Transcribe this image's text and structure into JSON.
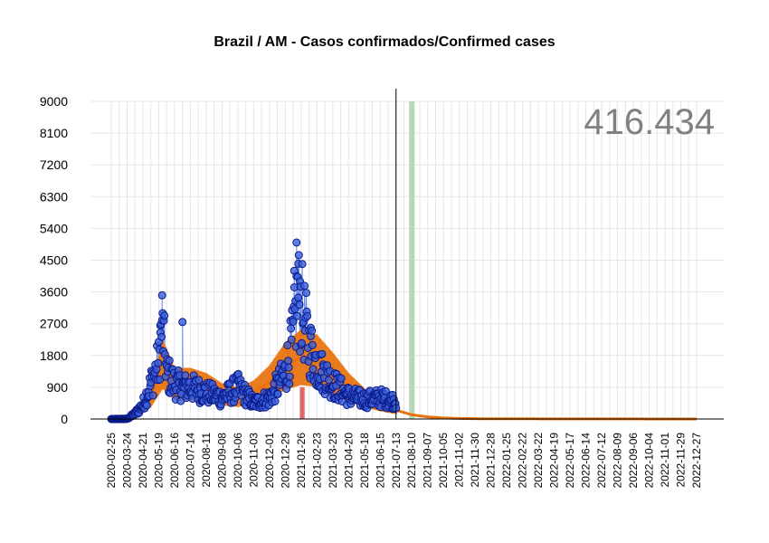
{
  "chart_data": {
    "type": "line",
    "title": "Brazil / AM - Casos confirmados/Confirmed cases",
    "total_label": "416.434",
    "y_ticks": [
      "0",
      "900",
      "1800",
      "2700",
      "3600",
      "4500",
      "5400",
      "6300",
      "7200",
      "8100",
      "9000"
    ],
    "ylim": [
      0,
      9000
    ],
    "x_tick_labels": [
      "2020-02-25",
      "2020-03-24",
      "2020-04-21",
      "2020-05-19",
      "2020-06-16",
      "2020-07-14",
      "2020-08-11",
      "2020-09-08",
      "2020-10-06",
      "2020-11-03",
      "2020-12-01",
      "2020-12-29",
      "2021-01-26",
      "2021-02-23",
      "2021-03-23",
      "2021-04-20",
      "2021-05-18",
      "2021-06-15",
      "2021-07-13",
      "2021-08-10",
      "2021-09-07",
      "2021-10-05",
      "2021-11-02",
      "2021-11-30",
      "2021-12-28",
      "2022-01-25",
      "2022-02-22",
      "2022-03-22",
      "2022-04-19",
      "2022-05-17",
      "2022-06-14",
      "2022-07-12",
      "2022-08-09",
      "2022-09-06",
      "2022-10-04",
      "2022-11-01",
      "2022-11-29",
      "2022-12-27"
    ],
    "xlim": [
      "2020-02-25",
      "2022-12-27"
    ],
    "current_date": "2021-07-13",
    "highlight_date": "2021-08-10",
    "grid": true,
    "colors": {
      "observed_points": "#3a5fd8",
      "observed_edge": "#0a1a8a",
      "observed_line": "#6f8fe8",
      "fitted": "#e8720c",
      "highlight": "#b7d7b7",
      "peak_bars": "#e06060",
      "grid": "#e6e6e6"
    },
    "observed_key_points": [
      {
        "x": "2020-02-25",
        "y": 0
      },
      {
        "x": "2020-03-24",
        "y": 5
      },
      {
        "x": "2020-04-07",
        "y": 150
      },
      {
        "x": "2020-04-21",
        "y": 400
      },
      {
        "x": "2020-05-05",
        "y": 1000
      },
      {
        "x": "2020-05-19",
        "y": 1600
      },
      {
        "x": "2020-05-25",
        "y": 2750
      },
      {
        "x": "2020-06-02",
        "y": 1300
      },
      {
        "x": "2020-06-16",
        "y": 1000
      },
      {
        "x": "2020-06-30",
        "y": 900
      },
      {
        "x": "2020-07-14",
        "y": 900
      },
      {
        "x": "2020-08-11",
        "y": 750
      },
      {
        "x": "2020-09-08",
        "y": 600
      },
      {
        "x": "2020-10-06",
        "y": 900
      },
      {
        "x": "2020-11-03",
        "y": 450
      },
      {
        "x": "2020-12-01",
        "y": 600
      },
      {
        "x": "2020-12-29",
        "y": 1300
      },
      {
        "x": "2021-01-12",
        "y": 2300
      },
      {
        "x": "2021-01-20",
        "y": 3500
      },
      {
        "x": "2021-01-26",
        "y": 3200
      },
      {
        "x": "2021-02-09",
        "y": 2100
      },
      {
        "x": "2021-02-23",
        "y": 1500
      },
      {
        "x": "2021-03-23",
        "y": 1000
      },
      {
        "x": "2021-04-20",
        "y": 650
      },
      {
        "x": "2021-05-18",
        "y": 550
      },
      {
        "x": "2021-06-15",
        "y": 600
      },
      {
        "x": "2021-07-13",
        "y": 500
      }
    ],
    "observed_extremes": [
      {
        "x": "2020-05-22",
        "y": 2650
      },
      {
        "x": "2020-05-25",
        "y": 2800
      },
      {
        "x": "2020-06-30",
        "y": 2750
      },
      {
        "x": "2021-01-14",
        "y": 4200
      },
      {
        "x": "2021-01-18",
        "y": 5000
      },
      {
        "x": "2021-01-21",
        "y": 4400
      },
      {
        "x": "2021-01-24",
        "y": 3900
      },
      {
        "x": "2021-02-12",
        "y": 2350
      }
    ],
    "fitted_key_points": [
      {
        "x": "2020-02-25",
        "y": 0
      },
      {
        "x": "2020-04-07",
        "y": 100
      },
      {
        "x": "2020-05-05",
        "y": 600
      },
      {
        "x": "2020-05-26",
        "y": 1550
      },
      {
        "x": "2020-06-16",
        "y": 1000
      },
      {
        "x": "2020-07-14",
        "y": 1000
      },
      {
        "x": "2020-08-11",
        "y": 900
      },
      {
        "x": "2020-09-08",
        "y": 700
      },
      {
        "x": "2020-10-06",
        "y": 620
      },
      {
        "x": "2020-11-03",
        "y": 750
      },
      {
        "x": "2020-12-01",
        "y": 1050
      },
      {
        "x": "2020-12-29",
        "y": 1500
      },
      {
        "x": "2021-01-26",
        "y": 1750
      },
      {
        "x": "2021-02-23",
        "y": 1650
      },
      {
        "x": "2021-03-23",
        "y": 1300
      },
      {
        "x": "2021-04-20",
        "y": 900
      },
      {
        "x": "2021-05-18",
        "y": 600
      },
      {
        "x": "2021-06-15",
        "y": 400
      },
      {
        "x": "2021-07-13",
        "y": 250
      },
      {
        "x": "2021-08-10",
        "y": 120
      },
      {
        "x": "2021-09-07",
        "y": 60
      },
      {
        "x": "2021-10-05",
        "y": 30
      },
      {
        "x": "2021-11-02",
        "y": 15
      },
      {
        "x": "2021-12-28",
        "y": 5
      },
      {
        "x": "2022-12-27",
        "y": 0
      }
    ]
  }
}
